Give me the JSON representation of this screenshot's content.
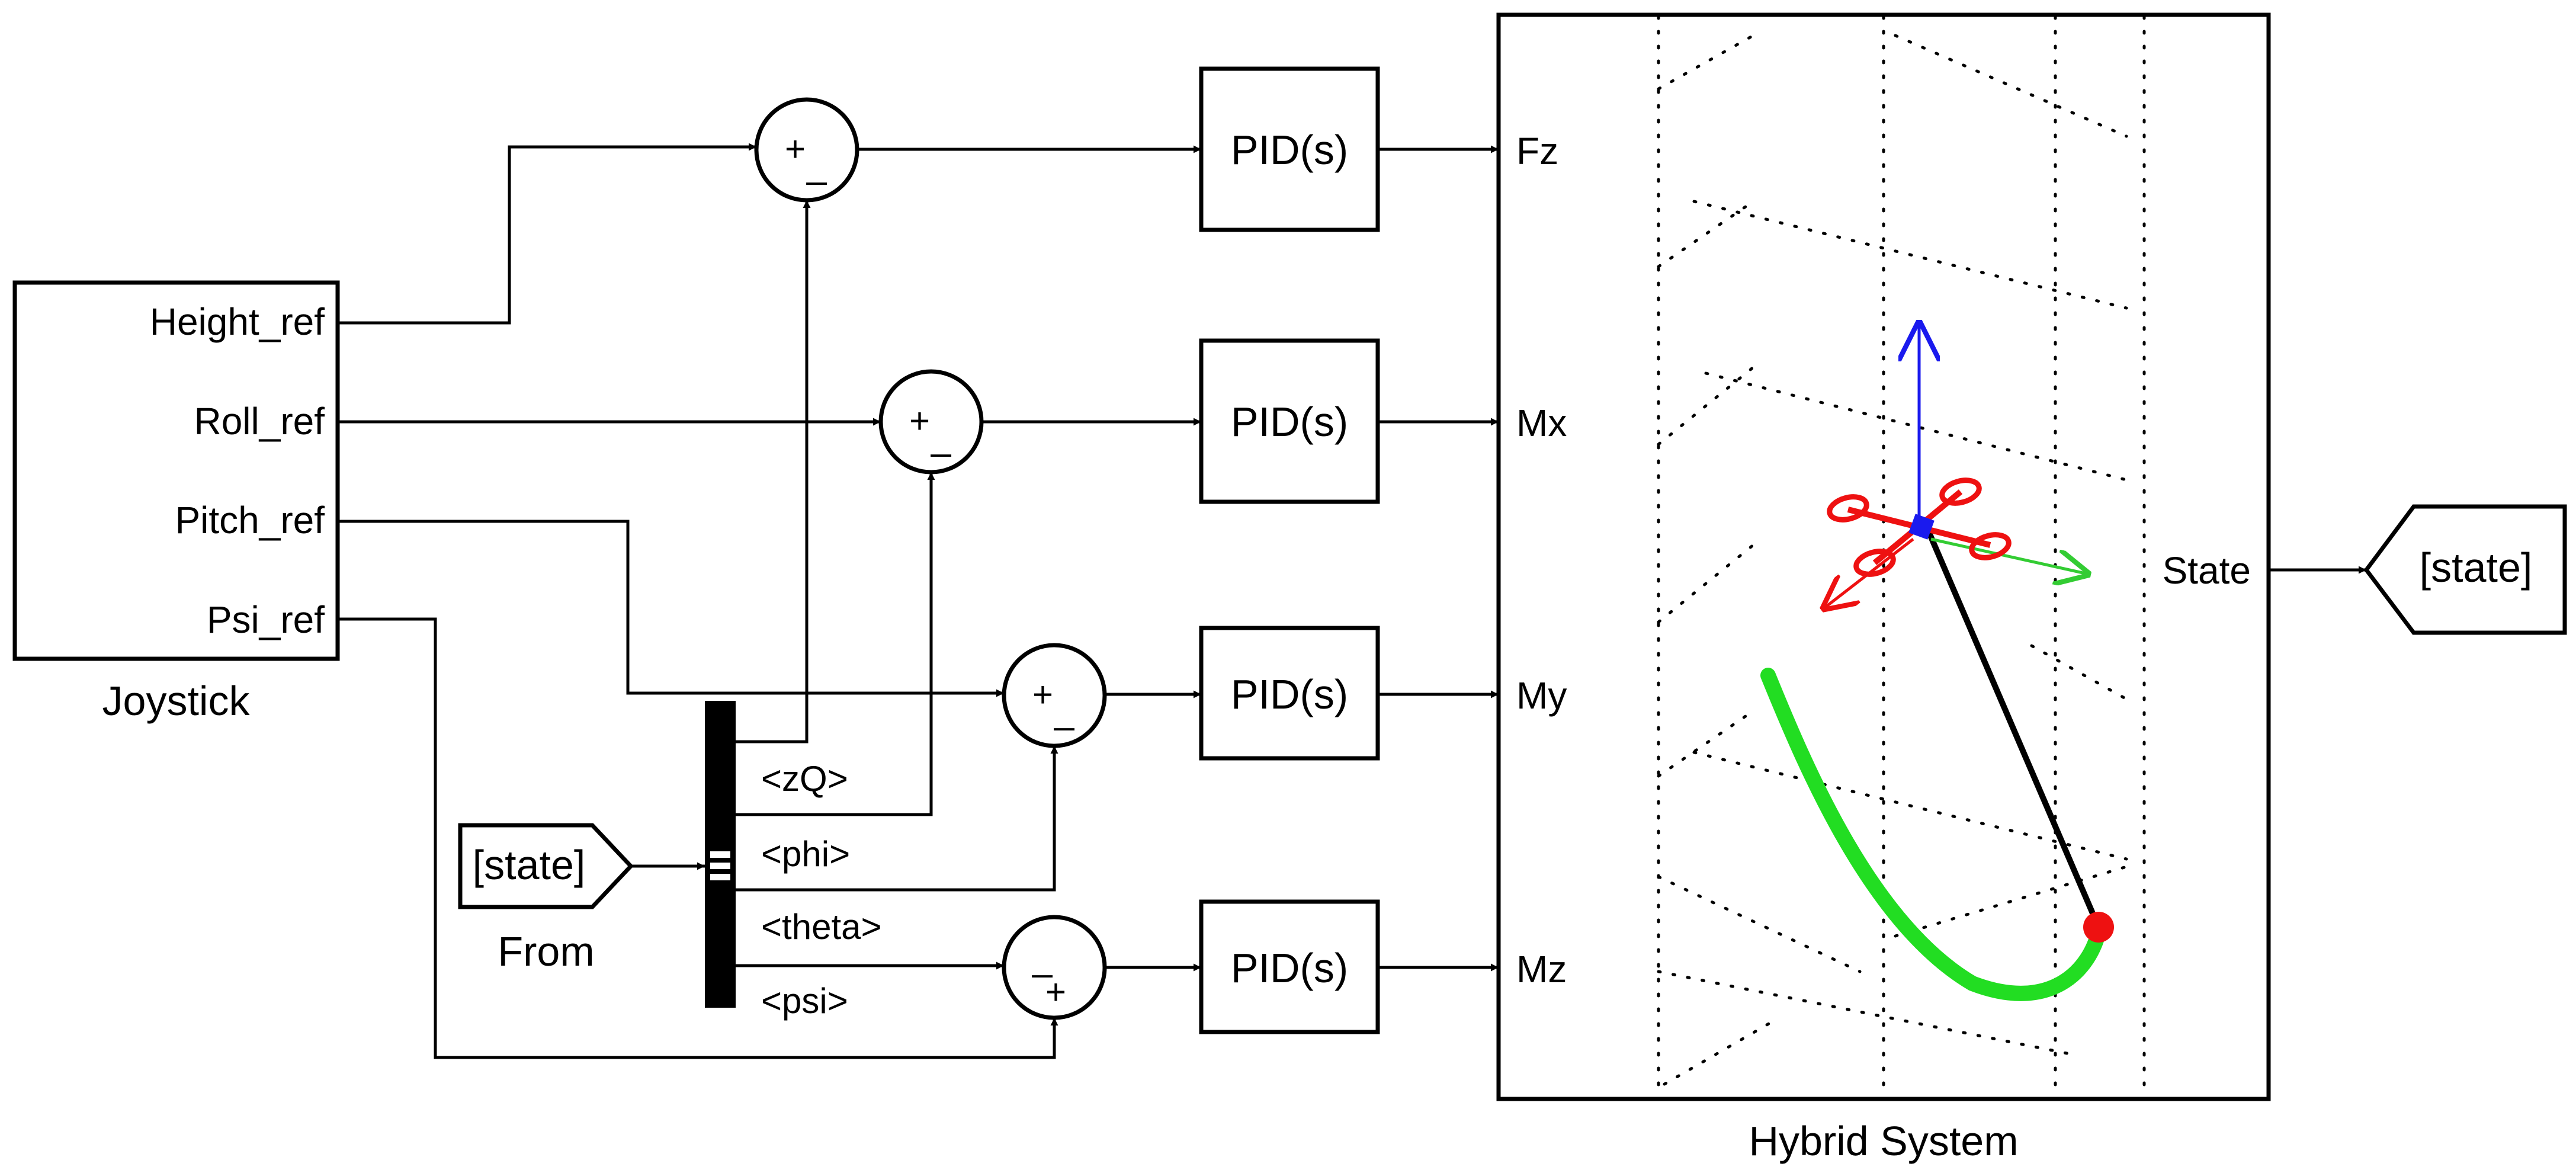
{
  "joystick": {
    "name": "Joystick",
    "outputs": [
      "Height_ref",
      "Roll_ref",
      "Pitch_ref",
      "Psi_ref"
    ]
  },
  "from_block": {
    "tag": "[state]",
    "name": "From"
  },
  "bus_signals": [
    "<zQ>",
    "<phi>",
    "<theta>",
    "<psi>"
  ],
  "sums": [
    {
      "top": "+",
      "bottom": "_"
    },
    {
      "top": "+",
      "bottom": "_"
    },
    {
      "top": "+",
      "bottom": "_"
    },
    {
      "top": "_",
      "bottom": "+"
    }
  ],
  "pid_label": "PID(s)",
  "plant": {
    "name": "Hybrid System",
    "inputs": [
      "Fz",
      "Mx",
      "My",
      "Mz"
    ],
    "output": "State"
  },
  "goto_block": {
    "tag": "[state]"
  },
  "colors": {
    "trajectory": "#22dd22",
    "rotor": "#ee1111",
    "z_axis": "#1a1aee",
    "y_axis": "#33cc33",
    "x_axis": "#ee1111",
    "tether": "#000000"
  }
}
